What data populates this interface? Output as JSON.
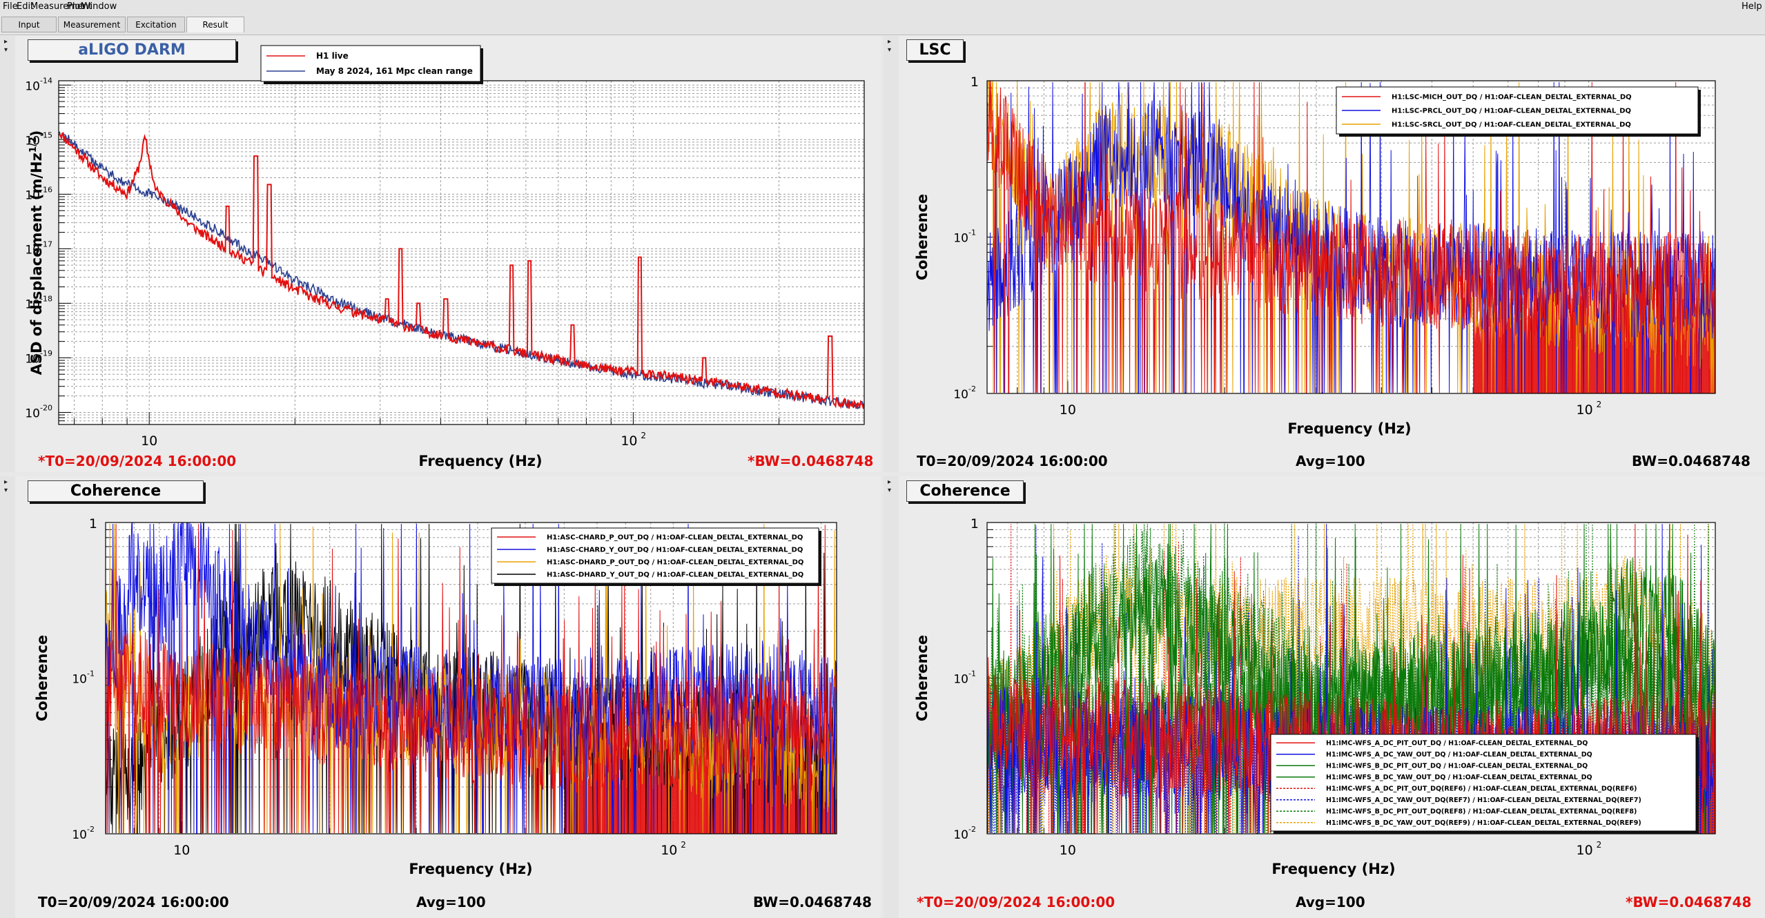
{
  "menu": {
    "items": [
      "File",
      "Edit",
      "Measurement",
      "Plot",
      "Window"
    ],
    "help": "Help"
  },
  "tabs": [
    "Input",
    "Measurement",
    "Excitation",
    "Result"
  ],
  "active_tab": "Result",
  "colors": {
    "red": "#e21010",
    "blue": "#1010e0",
    "dark_blue": "#2b3f8f",
    "orange": "#e8a000",
    "black": "#000000",
    "green": "#0b7a0b",
    "title_blue": "#3a5fa5"
  },
  "panels": [
    {
      "title": "aLIGO DARM",
      "xlabel": "Frequency (Hz)",
      "ylabel": "ASD of displacement (m/Hz",
      "ylabel_exp": "1/2",
      "ylabel_close": ")",
      "legend": [
        {
          "label": "H1 live",
          "color": "#e21010",
          "style": "solid"
        },
        {
          "label": "May 8 2024, 161 Mpc clean range",
          "color": "#2b3f8f",
          "style": "solid"
        }
      ],
      "footer": {
        "left": "*T0=20/09/2024 16:00:00",
        "center": "",
        "right": "*BW=0.0468748",
        "left_red": true,
        "right_red": true
      }
    },
    {
      "title": "LSC",
      "xlabel": "Frequency (Hz)",
      "ylabel": "Coherence",
      "legend": [
        {
          "label": "H1:LSC-MICH_OUT_DQ / H1:OAF-CLEAN_DELTAL_EXTERNAL_DQ",
          "color": "#e21010",
          "style": "solid"
        },
        {
          "label": "H1:LSC-PRCL_OUT_DQ / H1:OAF-CLEAN_DELTAL_EXTERNAL_DQ",
          "color": "#1010e0",
          "style": "solid"
        },
        {
          "label": "H1:LSC-SRCL_OUT_DQ / H1:OAF-CLEAN_DELTAL_EXTERNAL_DQ",
          "color": "#e8a000",
          "style": "solid"
        }
      ],
      "footer": {
        "left": "T0=20/09/2024 16:00:00",
        "center": "Avg=100",
        "right": "BW=0.0468748",
        "left_red": false,
        "right_red": false
      }
    },
    {
      "title": "Coherence",
      "xlabel": "Frequency (Hz)",
      "ylabel": "Coherence",
      "legend": [
        {
          "label": "H1:ASC-CHARD_P_OUT_DQ / H1:OAF-CLEAN_DELTAL_EXTERNAL_DQ",
          "color": "#e21010",
          "style": "solid"
        },
        {
          "label": "H1:ASC-CHARD_Y_OUT_DQ / H1:OAF-CLEAN_DELTAL_EXTERNAL_DQ",
          "color": "#1010e0",
          "style": "solid"
        },
        {
          "label": "H1:ASC-DHARD_P_OUT_DQ / H1:OAF-CLEAN_DELTAL_EXTERNAL_DQ",
          "color": "#e8a000",
          "style": "solid"
        },
        {
          "label": "H1:ASC-DHARD_Y_OUT_DQ / H1:OAF-CLEAN_DELTAL_EXTERNAL_DQ",
          "color": "#000000",
          "style": "solid"
        }
      ],
      "footer": {
        "left": "T0=20/09/2024 16:00:00",
        "center": "Avg=100",
        "right": "BW=0.0468748",
        "left_red": false,
        "right_red": false
      }
    },
    {
      "title": "Coherence",
      "xlabel": "Frequency (Hz)",
      "ylabel": "Coherence",
      "legend": [
        {
          "label": "H1:IMC-WFS_A_DC_PIT_OUT_DQ / H1:OAF-CLEAN_DELTAL_EXTERNAL_DQ",
          "color": "#e21010",
          "style": "solid"
        },
        {
          "label": "H1:IMC-WFS_A_DC_YAW_OUT_DQ / H1:OAF-CLEAN_DELTAL_EXTERNAL_DQ",
          "color": "#1010e0",
          "style": "solid"
        },
        {
          "label": "H1:IMC-WFS_B_DC_PIT_OUT_DQ / H1:OAF-CLEAN_DELTAL_EXTERNAL_DQ",
          "color": "#0b7a0b",
          "style": "solid"
        },
        {
          "label": "H1:IMC-WFS_B_DC_YAW_OUT_DQ / H1:OAF-CLEAN_DELTAL_EXTERNAL_DQ",
          "color": "#0b7a0b",
          "style": "solid"
        },
        {
          "label": "H1:IMC-WFS_A_DC_PIT_OUT_DQ(REF6) / H1:OAF-CLEAN_DELTAL_EXTERNAL_DQ(REF6)",
          "color": "#e21010",
          "style": "dotted"
        },
        {
          "label": "H1:IMC-WFS_A_DC_YAW_OUT_DQ(REF7) / H1:OAF-CLEAN_DELTAL_EXTERNAL_DQ(REF7)",
          "color": "#1010e0",
          "style": "dotted"
        },
        {
          "label": "H1:IMC-WFS_B_DC_PIT_OUT_DQ(REF8) / H1:OAF-CLEAN_DELTAL_EXTERNAL_DQ(REF8)",
          "color": "#0b7a0b",
          "style": "dotted"
        },
        {
          "label": "H1:IMC-WFS_B_DC_YAW_OUT_DQ(REF9) / H1:OAF-CLEAN_DELTAL_EXTERNAL_DQ(REF9)",
          "color": "#e8a000",
          "style": "dotted"
        }
      ],
      "footer": {
        "left": "*T0=20/09/2024 16:00:00",
        "center": "Avg=100",
        "right": "*BW=0.0468748",
        "left_red": true,
        "right_red": true
      }
    }
  ],
  "chart_data": [
    {
      "type": "line",
      "title": "aLIGO DARM",
      "xlabel": "Frequency (Hz)",
      "ylabel": "ASD of displacement (m/Hz^1/2)",
      "xscale": "log",
      "yscale": "log",
      "xlim": [
        6.5,
        300
      ],
      "ylim": [
        6e-21,
        1.2e-14
      ],
      "xticks": [
        "10",
        "10^2"
      ],
      "yticks": [
        "10^-14",
        "10^-15",
        "10^-16",
        "10^-17",
        "10^-18",
        "10^-19",
        "10^-20"
      ],
      "grid": true,
      "legend_position": "top-left",
      "series": [
        {
          "name": "H1 live",
          "color": "#e21010",
          "x": [
            6.5,
            7,
            8,
            9,
            9.5,
            9.8,
            10.3,
            11,
            12,
            13,
            14,
            15,
            16,
            17,
            18,
            20,
            22,
            25,
            30,
            35,
            40,
            50,
            60,
            80,
            100,
            150,
            200,
            300
          ],
          "y": [
            1.4e-15,
            7e-16,
            2e-16,
            1e-16,
            3e-16,
            1e-15,
            1.2e-16,
            7e-17,
            3e-17,
            1.8e-17,
            1.2e-17,
            8e-18,
            6e-18,
            4e-18,
            3e-18,
            1.8e-18,
            1.2e-18,
            8e-19,
            5e-19,
            3.5e-19,
            2.6e-19,
            1.7e-19,
            1.2e-19,
            7e-20,
            5.5e-20,
            3.5e-20,
            2.3e-20,
            1.3e-20
          ]
        },
        {
          "name": "May 8 2024, 161 Mpc clean range",
          "color": "#2b3f8f",
          "x": [
            6.5,
            7,
            8,
            9,
            10,
            11,
            12,
            13,
            14,
            15,
            16,
            18,
            20,
            25,
            30,
            40,
            50,
            60,
            80,
            100,
            150,
            200,
            300
          ],
          "y": [
            1.5e-15,
            8e-16,
            3e-16,
            1.5e-16,
            1e-16,
            7e-17,
            4.5e-17,
            3e-17,
            2e-17,
            1.3e-17,
            9e-18,
            5e-18,
            2.6e-18,
            1e-18,
            5.5e-19,
            2.7e-19,
            1.7e-19,
            1.2e-19,
            7e-20,
            5e-20,
            3.2e-20,
            2.2e-20,
            1.3e-20
          ]
        }
      ],
      "peaks": [
        {
          "x": 9.8,
          "y": 1e-15
        },
        {
          "x": 14.5,
          "y": 6e-17
        },
        {
          "x": 16.6,
          "y": 5e-16
        },
        {
          "x": 17.7,
          "y": 1.5e-16
        },
        {
          "x": 20.5,
          "y": 2e-18
        },
        {
          "x": 26,
          "y": 8e-19
        },
        {
          "x": 31,
          "y": 1.2e-18
        },
        {
          "x": 33,
          "y": 1e-17
        },
        {
          "x": 36,
          "y": 1e-18
        },
        {
          "x": 41,
          "y": 1.2e-18
        },
        {
          "x": 56,
          "y": 5e-18
        },
        {
          "x": 61,
          "y": 6e-18
        },
        {
          "x": 75,
          "y": 4e-19
        },
        {
          "x": 103,
          "y": 7e-18
        },
        {
          "x": 140,
          "y": 1e-19
        },
        {
          "x": 255,
          "y": 2.5e-19
        }
      ]
    },
    {
      "type": "line",
      "title": "LSC",
      "xlabel": "Frequency (Hz)",
      "ylabel": "Coherence",
      "xscale": "log",
      "yscale": "log",
      "xlim": [
        7,
        175
      ],
      "ylim": [
        0.01,
        1
      ],
      "xticks": [
        "10",
        "10^2"
      ],
      "yticks": [
        "1",
        "10^-1",
        "10^-2"
      ],
      "grid": true,
      "legend_position": "top-right",
      "series": [
        {
          "name": "H1:LSC-MICH_OUT_DQ / H1:OAF-CLEAN_DELTAL_EXTERNAL_DQ",
          "color": "#e21010",
          "envelope": [
            [
              7,
              0.6
            ],
            [
              9,
              0.15
            ],
            [
              12,
              0.1
            ],
            [
              20,
              0.08
            ],
            [
              40,
              0.06
            ],
            [
              80,
              0.05
            ],
            [
              175,
              0.05
            ]
          ]
        },
        {
          "name": "H1:LSC-PRCL_OUT_DQ / H1:OAF-CLEAN_DELTAL_EXTERNAL_DQ",
          "color": "#1010e0",
          "envelope": [
            [
              7,
              0.05
            ],
            [
              11,
              0.2
            ],
            [
              12,
              0.45
            ],
            [
              13,
              0.3
            ],
            [
              15,
              0.35
            ],
            [
              20,
              0.25
            ],
            [
              25,
              0.1
            ],
            [
              40,
              0.06
            ],
            [
              100,
              0.05
            ],
            [
              175,
              0.05
            ]
          ]
        },
        {
          "name": "H1:LSC-SRCL_OUT_DQ / H1:OAF-CLEAN_DELTAL_EXTERNAL_DQ",
          "color": "#e8a000",
          "envelope": [
            [
              7,
              0.7
            ],
            [
              9,
              0.1
            ],
            [
              12,
              0.4
            ],
            [
              14,
              0.35
            ],
            [
              20,
              0.25
            ],
            [
              30,
              0.08
            ],
            [
              175,
              0.03
            ]
          ]
        }
      ]
    },
    {
      "type": "line",
      "title": "Coherence",
      "xlabel": "Frequency (Hz)",
      "ylabel": "Coherence",
      "xscale": "log",
      "yscale": "log",
      "xlim": [
        7,
        215
      ],
      "ylim": [
        0.01,
        1
      ],
      "xticks": [
        "10",
        "10^2"
      ],
      "yticks": [
        "1",
        "10^-1",
        "10^-2"
      ],
      "grid": true,
      "legend_position": "top-right",
      "series": [
        {
          "name": "H1:ASC-CHARD_P_OUT_DQ / H1:OAF-CLEAN_DELTAL_EXTERNAL_DQ",
          "color": "#e21010",
          "envelope": [
            [
              7,
              0.1
            ],
            [
              10,
              0.08
            ],
            [
              20,
              0.06
            ],
            [
              60,
              0.04
            ],
            [
              150,
              0.05
            ],
            [
              215,
              0.06
            ]
          ]
        },
        {
          "name": "H1:ASC-CHARD_Y_OUT_DQ / H1:OAF-CLEAN_DELTAL_EXTERNAL_DQ",
          "color": "#1010e0",
          "envelope": [
            [
              7,
              0.1
            ],
            [
              8,
              0.5
            ],
            [
              9,
              0.3
            ],
            [
              10,
              0.6
            ],
            [
              11,
              0.5
            ],
            [
              13,
              0.2
            ],
            [
              20,
              0.08
            ],
            [
              60,
              0.06
            ],
            [
              150,
              0.08
            ],
            [
              215,
              0.06
            ]
          ]
        },
        {
          "name": "H1:ASC-DHARD_P_OUT_DQ / H1:OAF-CLEAN_DELTAL_EXTERNAL_DQ",
          "color": "#e8a000",
          "envelope": [
            [
              7,
              0.2
            ],
            [
              9,
              0.05
            ],
            [
              12,
              0.08
            ],
            [
              30,
              0.06
            ],
            [
              215,
              0.03
            ]
          ]
        },
        {
          "name": "H1:ASC-DHARD_Y_OUT_DQ / H1:OAF-CLEAN_DELTAL_EXTERNAL_DQ",
          "color": "#000000",
          "envelope": [
            [
              7,
              0.02
            ],
            [
              10,
              0.05
            ],
            [
              12,
              0.15
            ],
            [
              15,
              0.25
            ],
            [
              20,
              0.2
            ],
            [
              25,
              0.12
            ],
            [
              30,
              0.08
            ],
            [
              215,
              0.03
            ]
          ]
        }
      ]
    },
    {
      "type": "line",
      "title": "Coherence",
      "xlabel": "Frequency (Hz)",
      "ylabel": "Coherence",
      "xscale": "log",
      "yscale": "log",
      "xlim": [
        7,
        175
      ],
      "ylim": [
        0.01,
        1
      ],
      "xticks": [
        "10",
        "10^2"
      ],
      "yticks": [
        "1",
        "10^-1",
        "10^-2"
      ],
      "grid": true,
      "legend_position": "bottom-right",
      "series": [
        {
          "name": "H1:IMC-WFS_A_DC_PIT_OUT_DQ / H1:OAF-CLEAN_DELTAL_EXTERNAL_DQ",
          "color": "#e21010",
          "envelope": [
            [
              7,
              0.05
            ],
            [
              20,
              0.04
            ],
            [
              60,
              0.03
            ],
            [
              175,
              0.04
            ]
          ]
        },
        {
          "name": "H1:IMC-WFS_A_DC_YAW_OUT_DQ / H1:OAF-CLEAN_DELTAL_EXTERNAL_DQ",
          "color": "#1010e0",
          "envelope": [
            [
              7,
              0.04
            ],
            [
              60,
              0.03
            ],
            [
              175,
              0.03
            ]
          ]
        },
        {
          "name": "H1:IMC-WFS_B_DC_PIT_OUT_DQ / H1:OAF-CLEAN_DELTAL_EXTERNAL_DQ",
          "color": "#0b7a0b",
          "envelope": [
            [
              7,
              0.05
            ],
            [
              12,
              0.2
            ],
            [
              14,
              0.3
            ],
            [
              30,
              0.06
            ],
            [
              90,
              0.08
            ],
            [
              120,
              0.3
            ],
            [
              150,
              0.2
            ],
            [
              175,
              0.08
            ]
          ]
        },
        {
          "name": "H1:IMC-WFS_B_DC_YAW_OUT_DQ / H1:OAF-CLEAN_DELTAL_EXTERNAL_DQ",
          "color": "#0b7a0b",
          "envelope": [
            [
              7,
              0.04
            ],
            [
              20,
              0.05
            ],
            [
              100,
              0.15
            ],
            [
              175,
              0.05
            ]
          ]
        },
        {
          "name": "H1:IMC-WFS_A_DC_PIT_OUT_DQ(REF6) / H1:OAF-CLEAN_DELTAL_EXTERNAL_DQ(REF6)",
          "color": "#e21010",
          "envelope": [
            [
              7,
              0.04
            ],
            [
              175,
              0.03
            ]
          ]
        },
        {
          "name": "H1:IMC-WFS_A_DC_YAW_OUT_DQ(REF7) / H1:OAF-CLEAN_DELTAL_EXTERNAL_DQ(REF7)",
          "color": "#1010e0",
          "envelope": [
            [
              7,
              0.03
            ],
            [
              175,
              0.03
            ]
          ]
        },
        {
          "name": "H1:IMC-WFS_B_DC_PIT_OUT_DQ(REF8) / H1:OAF-CLEAN_DELTAL_EXTERNAL_DQ(REF8)",
          "color": "#0b7a0b",
          "envelope": [
            [
              7,
              0.05
            ],
            [
              12,
              0.3
            ],
            [
              14,
              0.5
            ],
            [
              30,
              0.08
            ],
            [
              175,
              0.1
            ]
          ]
        },
        {
          "name": "H1:IMC-WFS_B_DC_YAW_OUT_DQ(REF9) / H1:OAF-CLEAN_DELTAL_EXTERNAL_DQ(REF9)",
          "color": "#e8a000",
          "envelope": [
            [
              7,
              0.05
            ],
            [
              12,
              0.3
            ],
            [
              14,
              0.2
            ],
            [
              100,
              0.2
            ],
            [
              120,
              0.3
            ],
            [
              175,
              0.1
            ]
          ]
        }
      ]
    }
  ]
}
